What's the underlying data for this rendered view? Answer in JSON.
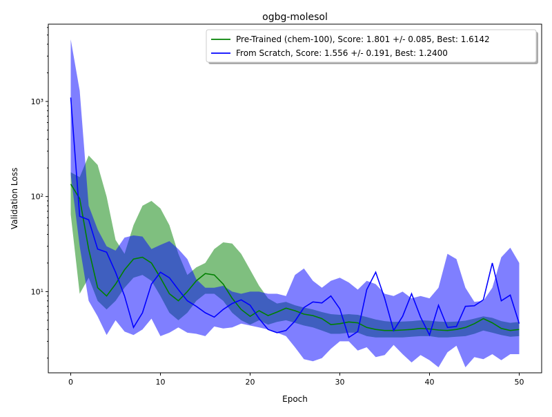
{
  "chart_data": {
    "type": "line",
    "title": "ogbg-molesol",
    "xlabel": "Epoch",
    "ylabel": "Validation Loss",
    "yscale": "log",
    "xlim": [
      -2.5,
      52.5
    ],
    "ylim": [
      1.4,
      6500
    ],
    "x_ticks": [
      0,
      10,
      20,
      30,
      40,
      50
    ],
    "x_tick_labels": [
      "0",
      "10",
      "20",
      "30",
      "40",
      "50"
    ],
    "y_ticks": [
      10,
      100,
      1000
    ],
    "y_tick_labels": [
      "10¹",
      "10²",
      "10³"
    ],
    "grid": false,
    "legend_position": "top-right",
    "x": [
      0,
      1,
      2,
      3,
      4,
      5,
      6,
      7,
      8,
      9,
      10,
      11,
      12,
      13,
      14,
      15,
      16,
      17,
      18,
      19,
      20,
      21,
      22,
      23,
      24,
      25,
      26,
      27,
      28,
      29,
      30,
      31,
      32,
      33,
      34,
      35,
      36,
      37,
      38,
      39,
      40,
      41,
      42,
      43,
      44,
      45,
      46,
      47,
      48,
      49,
      50
    ],
    "series": [
      {
        "name": "Pre-Trained (chem-100), Score: 1.801 +/- 0.085,  Best: 1.6142",
        "color": "#008000",
        "band_color": "#008000",
        "mean": [
          135,
          95,
          28,
          11,
          9,
          12,
          17,
          22,
          23,
          20,
          14,
          9.5,
          8,
          10,
          13,
          15.5,
          15,
          12,
          8.5,
          6.5,
          5.5,
          6.3,
          5.6,
          6.1,
          6.7,
          6.3,
          5.8,
          5.6,
          5.2,
          4.5,
          4.6,
          4.8,
          4.7,
          4.2,
          4.0,
          3.9,
          3.9,
          3.95,
          4.0,
          4.1,
          4.05,
          3.95,
          3.9,
          4.0,
          4.2,
          4.6,
          5.2,
          4.7,
          4.1,
          3.9,
          4.0
        ],
        "lower": [
          65,
          9.5,
          14,
          8,
          6.5,
          8,
          11,
          14,
          15,
          13,
          9,
          6,
          5,
          6,
          8,
          9.5,
          9.5,
          8,
          6,
          5,
          4.5,
          5,
          4.5,
          4.8,
          5,
          4.7,
          4.4,
          4.2,
          3.9,
          3.6,
          3.6,
          3.7,
          3.7,
          3.4,
          3.3,
          3.3,
          3.3,
          3.3,
          3.35,
          3.4,
          3.4,
          3.3,
          3.3,
          3.35,
          3.4,
          3.6,
          3.9,
          3.7,
          3.5,
          3.35,
          3.4
        ],
        "upper": [
          180,
          160,
          270,
          215,
          100,
          35,
          25,
          50,
          80,
          90,
          75,
          50,
          25,
          15,
          18,
          20,
          28,
          33,
          32,
          25,
          17,
          11.5,
          8.5,
          7.5,
          7.8,
          7.2,
          6.8,
          6.5,
          6.1,
          5.8,
          5.7,
          5.8,
          5.7,
          5.4,
          5.1,
          4.9,
          4.8,
          4.85,
          4.9,
          5.0,
          4.95,
          4.85,
          4.8,
          4.85,
          4.95,
          5.2,
          5.5,
          5.3,
          4.9,
          4.7,
          4.8
        ]
      },
      {
        "name": "From Scratch, Score: 1.556 +/- 0.191,  Best: 1.2400",
        "color": "#0000ff",
        "band_color": "#0000ff",
        "mean": [
          1100,
          62,
          57,
          28,
          26,
          16,
          9,
          4.2,
          6,
          12,
          16,
          14,
          10.5,
          8,
          7,
          6,
          5.4,
          6.5,
          7.5,
          8.2,
          7.2,
          5.2,
          4,
          3.7,
          3.9,
          4.9,
          6.8,
          7.8,
          7.6,
          9,
          6.6,
          3.3,
          3.8,
          10.5,
          16,
          8.5,
          3.9,
          5.5,
          9.5,
          5.4,
          3.5,
          7.2,
          4.2,
          4.3,
          7,
          7.1,
          8.2,
          20,
          8,
          9.2,
          4.6
        ],
        "lower": [
          170,
          30,
          8,
          5.5,
          3.5,
          5,
          3.8,
          3.5,
          4,
          5.2,
          3.4,
          3.7,
          4.2,
          3.7,
          3.6,
          3.4,
          4.3,
          4.1,
          4.2,
          4.6,
          4.4,
          4.2,
          4.0,
          3.7,
          3.4,
          2.6,
          1.95,
          1.85,
          2.0,
          2.5,
          3.0,
          3.0,
          2.4,
          2.6,
          2.05,
          2.15,
          2.75,
          2.2,
          1.8,
          2.15,
          1.9,
          1.6,
          2.3,
          2.7,
          1.6,
          2.05,
          1.95,
          2.2,
          1.9,
          2.2,
          2.2
        ],
        "upper": [
          4500,
          1300,
          80,
          45,
          30,
          27,
          37,
          39,
          38,
          28,
          31,
          34,
          28,
          22,
          13.5,
          11,
          11,
          11.5,
          10,
          9.5,
          10,
          10,
          9.5,
          9.5,
          9,
          15,
          17.5,
          13,
          11,
          13,
          14,
          12.5,
          10.5,
          13,
          12,
          9.5,
          9,
          10,
          8.5,
          9,
          8.5,
          11,
          25,
          22,
          11,
          7.8,
          8,
          11,
          23,
          29,
          20
        ]
      }
    ]
  }
}
